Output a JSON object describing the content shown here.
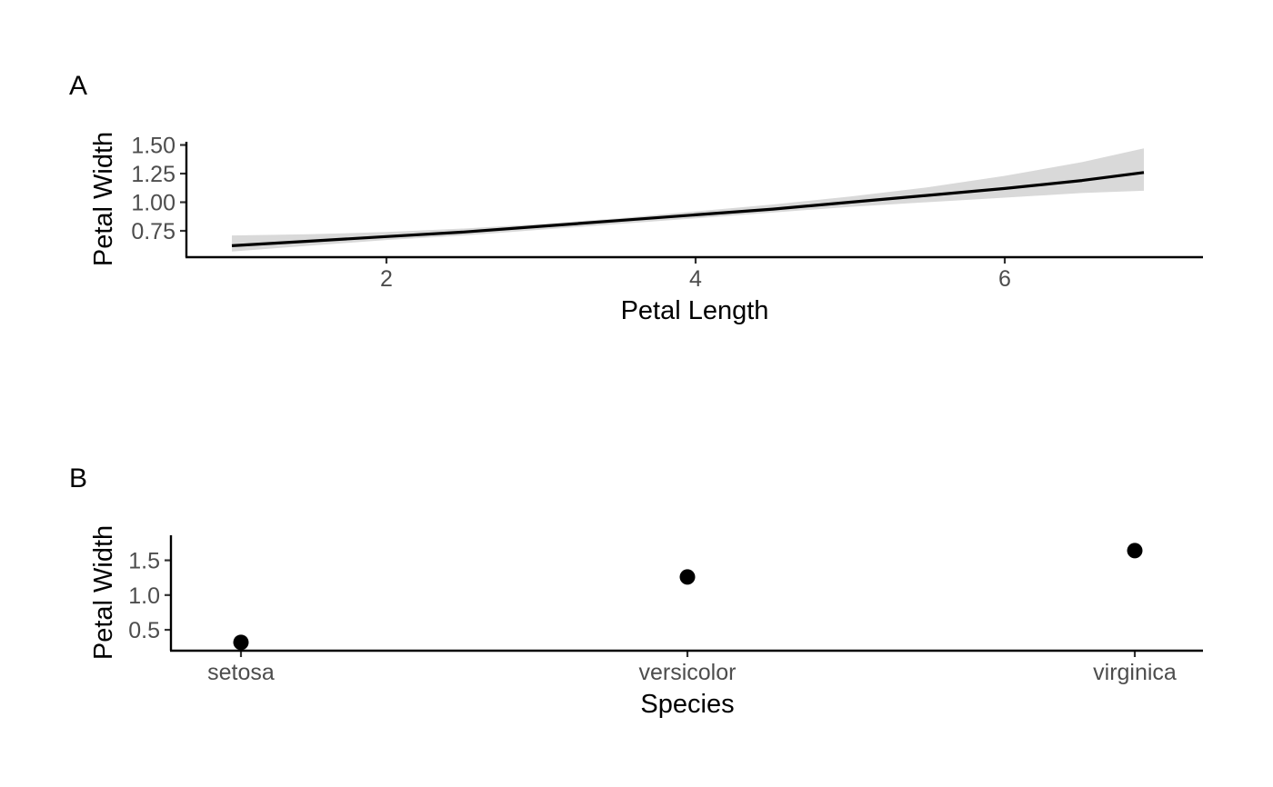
{
  "chart_data": [
    {
      "panel": "A",
      "type": "line",
      "xlabel": "Petal Length",
      "ylabel": "Petal Width",
      "x_ticks": [
        2,
        4,
        6
      ],
      "y_ticks": [
        "0.75",
        "1.00",
        "1.25",
        "1.50"
      ],
      "xlim": [
        0.7,
        7.3
      ],
      "ylim": [
        0.52,
        1.5
      ],
      "grid": false,
      "series": [
        {
          "x": [
            1.0,
            1.5,
            2.0,
            2.5,
            3.0,
            3.5,
            4.0,
            4.5,
            5.0,
            5.5,
            6.0,
            6.5,
            6.9
          ],
          "y": [
            0.62,
            0.66,
            0.7,
            0.74,
            0.79,
            0.84,
            0.89,
            0.94,
            1.0,
            1.06,
            1.12,
            1.19,
            1.26
          ],
          "lower": [
            0.57,
            0.62,
            0.67,
            0.71,
            0.76,
            0.81,
            0.86,
            0.91,
            0.96,
            1.0,
            1.04,
            1.08,
            1.1
          ],
          "upper": [
            0.71,
            0.72,
            0.74,
            0.77,
            0.81,
            0.86,
            0.92,
            0.98,
            1.05,
            1.13,
            1.23,
            1.35,
            1.47
          ]
        }
      ],
      "line_color": "#000000",
      "band_color": "#d9d9d9"
    },
    {
      "panel": "B",
      "type": "scatter",
      "xlabel": "Species",
      "ylabel": "Petal Width",
      "categories": [
        "setosa",
        "versicolor",
        "virginica"
      ],
      "values": [
        0.32,
        1.26,
        1.64
      ],
      "err_low": [
        0.3,
        1.24,
        1.59
      ],
      "err_high": [
        0.35,
        1.29,
        1.7
      ],
      "y_ticks": [
        "0.5",
        "1.0",
        "1.5"
      ],
      "ylim": [
        0.2,
        1.82
      ],
      "grid": false,
      "point_color": "#000000"
    }
  ]
}
